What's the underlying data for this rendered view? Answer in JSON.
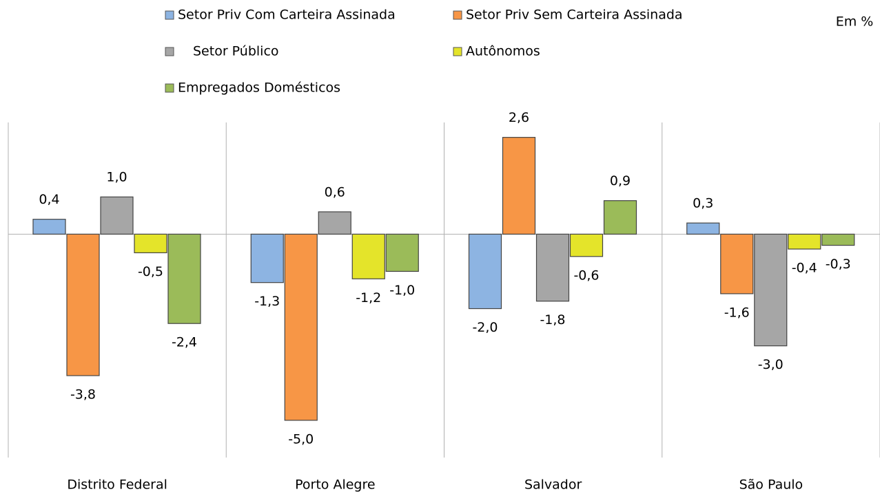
{
  "chart_data": {
    "type": "bar",
    "annotation": "Em %",
    "categories": [
      "Distrito Federal",
      "Porto Alegre",
      "Salvador",
      "São Paulo"
    ],
    "series": [
      {
        "name": "Setor Priv Com Carteira Assinada",
        "color": "#8db4e2",
        "values": [
          0.4,
          -1.3,
          -2.0,
          0.3
        ],
        "value_labels": [
          "0,4",
          "-1,3",
          "-2,0",
          "0,3"
        ]
      },
      {
        "name": "Setor Priv Sem Carteira Assinada",
        "color": "#f79646",
        "values": [
          -3.8,
          -5.0,
          2.6,
          -1.6
        ],
        "value_labels": [
          "-3,8",
          "-5,0",
          "2,6",
          "-1,6"
        ]
      },
      {
        "name": "Setor Público",
        "color": "#a6a6a6",
        "values": [
          1.0,
          0.6,
          -1.8,
          -3.0
        ],
        "value_labels": [
          "1,0",
          "0,6",
          "-1,8",
          "-3,0"
        ]
      },
      {
        "name": "Autônomos",
        "color": "#e4e42a",
        "values": [
          -0.5,
          -1.2,
          -0.6,
          -0.4
        ],
        "value_labels": [
          "-0,5",
          "-1,2",
          "-0,6",
          "-0,4"
        ]
      },
      {
        "name": "Empregados Domésticos",
        "color": "#9bbb59",
        "values": [
          -2.4,
          -1.0,
          0.9,
          -0.3
        ],
        "value_labels": [
          "-2,4",
          "-1,0",
          "0,9",
          "-0,3"
        ]
      }
    ],
    "ylim": [
      -6,
      3
    ]
  }
}
